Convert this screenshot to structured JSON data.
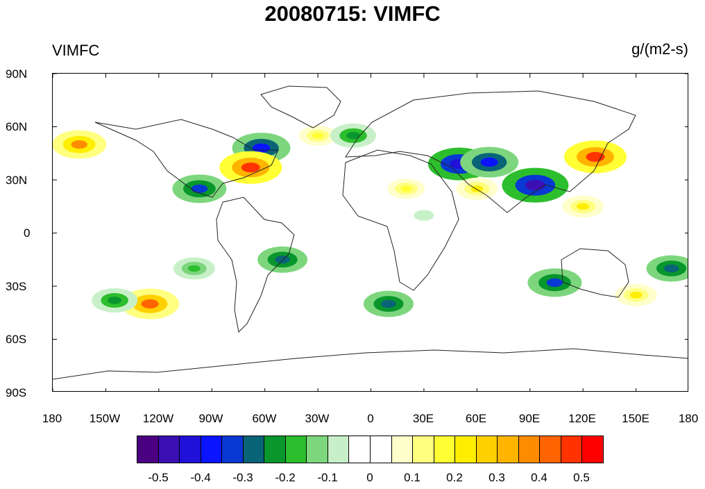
{
  "title": "20080715: VIMFC",
  "variable_label": "VIMFC",
  "units_label": "g/(m2-s)",
  "lat_labels": [
    "90N",
    "60N",
    "30N",
    "0",
    "30S",
    "60S",
    "90S"
  ],
  "lon_labels": [
    "180",
    "150W",
    "120W",
    "90W",
    "60W",
    "30W",
    "0",
    "30E",
    "60E",
    "90E",
    "120E",
    "150E",
    "180"
  ],
  "colorbar": {
    "colors": [
      "#4b0082",
      "#3b0fb4",
      "#2010d8",
      "#0a14ff",
      "#0a38d2",
      "#0a6478",
      "#08962d",
      "#2dbe2d",
      "#7dd67d",
      "#c8f0c8",
      "#ffffff",
      "#ffffff",
      "#ffffcc",
      "#ffff80",
      "#ffff33",
      "#ffee00",
      "#ffd000",
      "#ffb400",
      "#ff8c00",
      "#ff6400",
      "#ff3200",
      "#ff0000"
    ],
    "labels": [
      "-0.5",
      "-0.4",
      "-0.3",
      "-0.2",
      "-0.1",
      "0",
      "0.1",
      "0.2",
      "0.3",
      "0.4",
      "0.5"
    ]
  },
  "blobs": [
    {
      "lon": -165,
      "lat": 50,
      "value": 0.35
    },
    {
      "lon": -62,
      "lat": 48,
      "value": -0.4
    },
    {
      "lon": -68,
      "lat": 37,
      "value": 0.45
    },
    {
      "lon": -97,
      "lat": 25,
      "value": -0.35
    },
    {
      "lon": -125,
      "lat": -40,
      "value": 0.4
    },
    {
      "lon": -145,
      "lat": -38,
      "value": -0.25
    },
    {
      "lon": 50,
      "lat": 39,
      "value": -0.45
    },
    {
      "lon": 67,
      "lat": 40,
      "value": -0.4
    },
    {
      "lon": 93,
      "lat": 27,
      "value": -0.5
    },
    {
      "lon": 127,
      "lat": 43,
      "value": 0.45
    },
    {
      "lon": 104,
      "lat": -28,
      "value": -0.35
    },
    {
      "lon": 10,
      "lat": -40,
      "value": -0.3
    },
    {
      "lon": -50,
      "lat": -15,
      "value": -0.3
    },
    {
      "lon": -100,
      "lat": -20,
      "value": -0.2
    },
    {
      "lon": 20,
      "lat": 25,
      "value": 0.15
    },
    {
      "lon": 60,
      "lat": 25,
      "value": 0.2
    },
    {
      "lon": 120,
      "lat": 15,
      "value": 0.2
    },
    {
      "lon": -30,
      "lat": 55,
      "value": 0.15
    },
    {
      "lon": 150,
      "lat": -35,
      "value": 0.2
    },
    {
      "lon": 170,
      "lat": -20,
      "value": -0.3
    },
    {
      "lon": 30,
      "lat": 10,
      "value": -0.1
    },
    {
      "lon": -10,
      "lat": 55,
      "value": -0.25
    }
  ]
}
